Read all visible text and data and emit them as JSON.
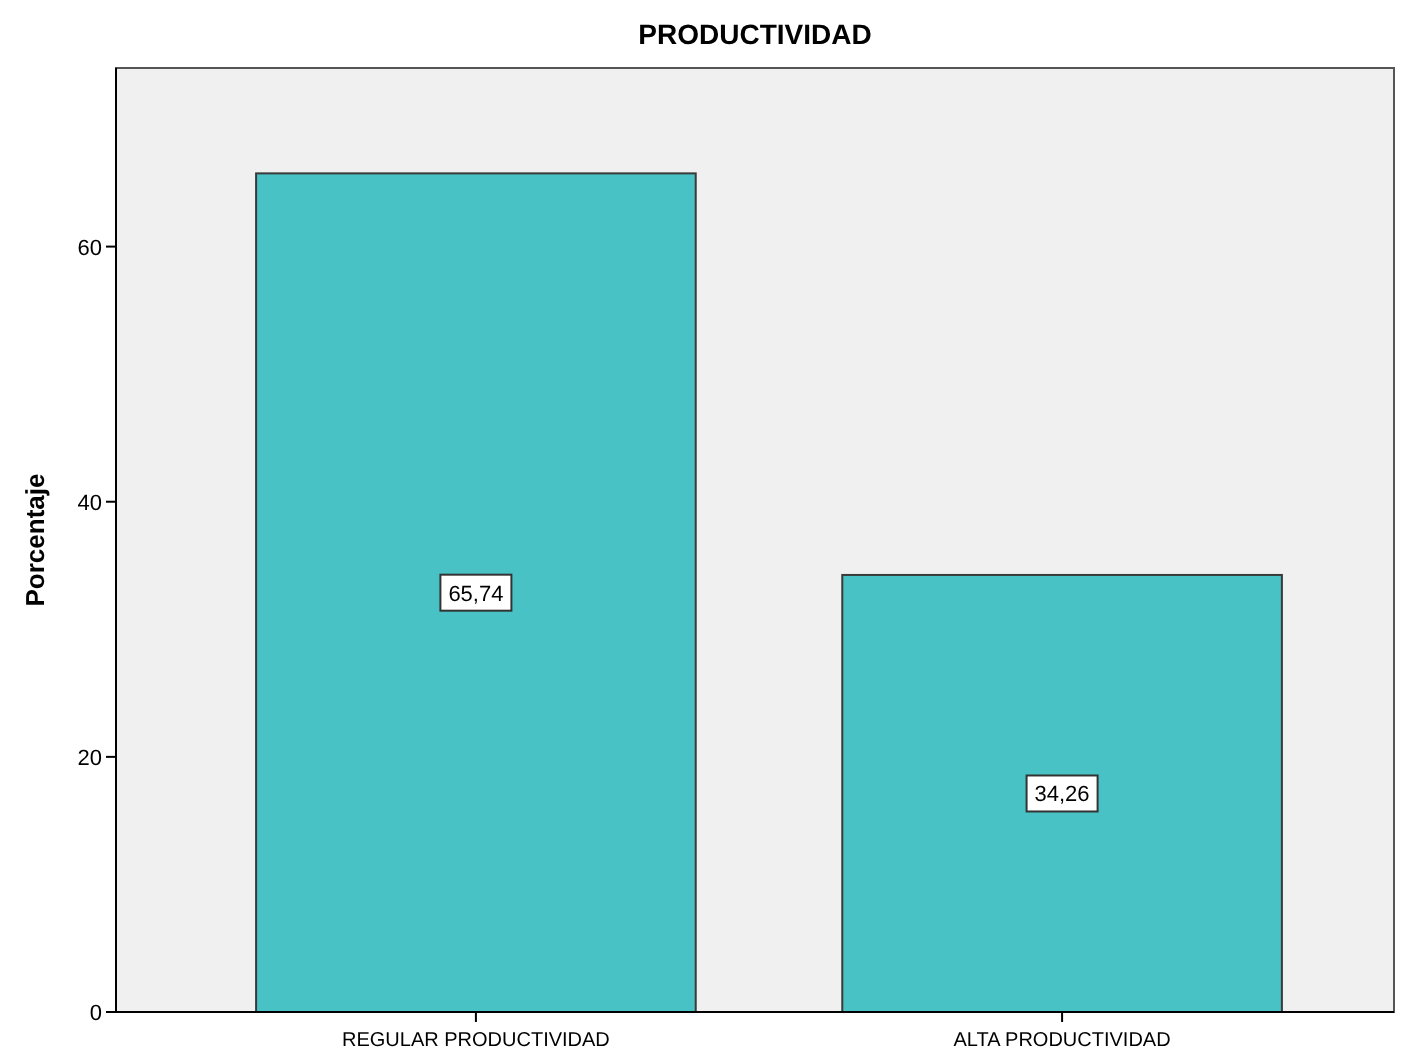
{
  "chart_data": {
    "type": "bar",
    "title": "PRODUCTIVIDAD",
    "ylabel": "Porcentaje",
    "categories": [
      "REGULAR PRODUCTIVIDAD",
      "ALTA PRODUCTIVIDAD"
    ],
    "values": [
      65.74,
      34.26
    ],
    "value_labels": [
      "65,74",
      "34,26"
    ],
    "color": "#48c2c5",
    "ylim": [
      0,
      74
    ],
    "yticks": [
      0,
      20,
      40,
      60
    ],
    "grid": false
  }
}
